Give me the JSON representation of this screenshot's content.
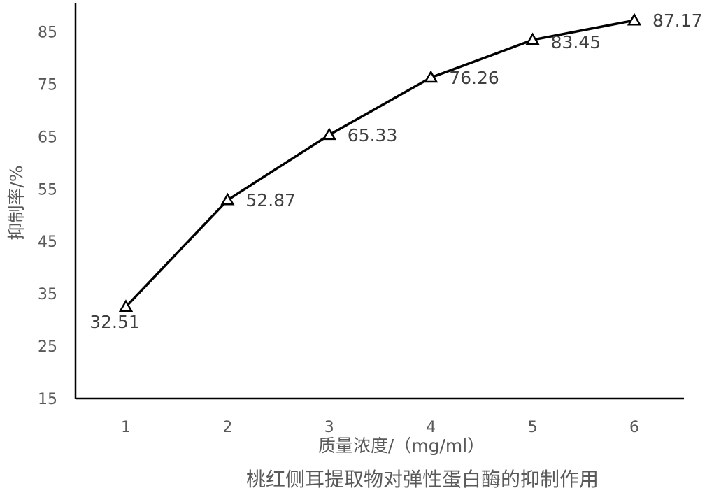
{
  "chart_data": {
    "type": "line",
    "title": "",
    "caption": "桃红侧耳提取物对弹性蛋白酶的抑制作用",
    "xlabel": "质量浓度/（mg/ml）",
    "ylabel": "抑制率/%",
    "x": [
      1,
      2,
      3,
      4,
      5,
      6
    ],
    "y_ticks": [
      15,
      25,
      35,
      45,
      55,
      65,
      75,
      85
    ],
    "ylim": [
      15,
      90
    ],
    "grid": false,
    "legend": "none",
    "marker": "open-triangle",
    "line_color": "#000000",
    "series": [
      {
        "values": [
          32.51,
          52.87,
          65.33,
          76.26,
          83.45,
          87.17
        ],
        "labels": [
          "32.51",
          "52.87",
          "65.33",
          "76.26",
          "83.45",
          "87.17"
        ]
      }
    ]
  }
}
